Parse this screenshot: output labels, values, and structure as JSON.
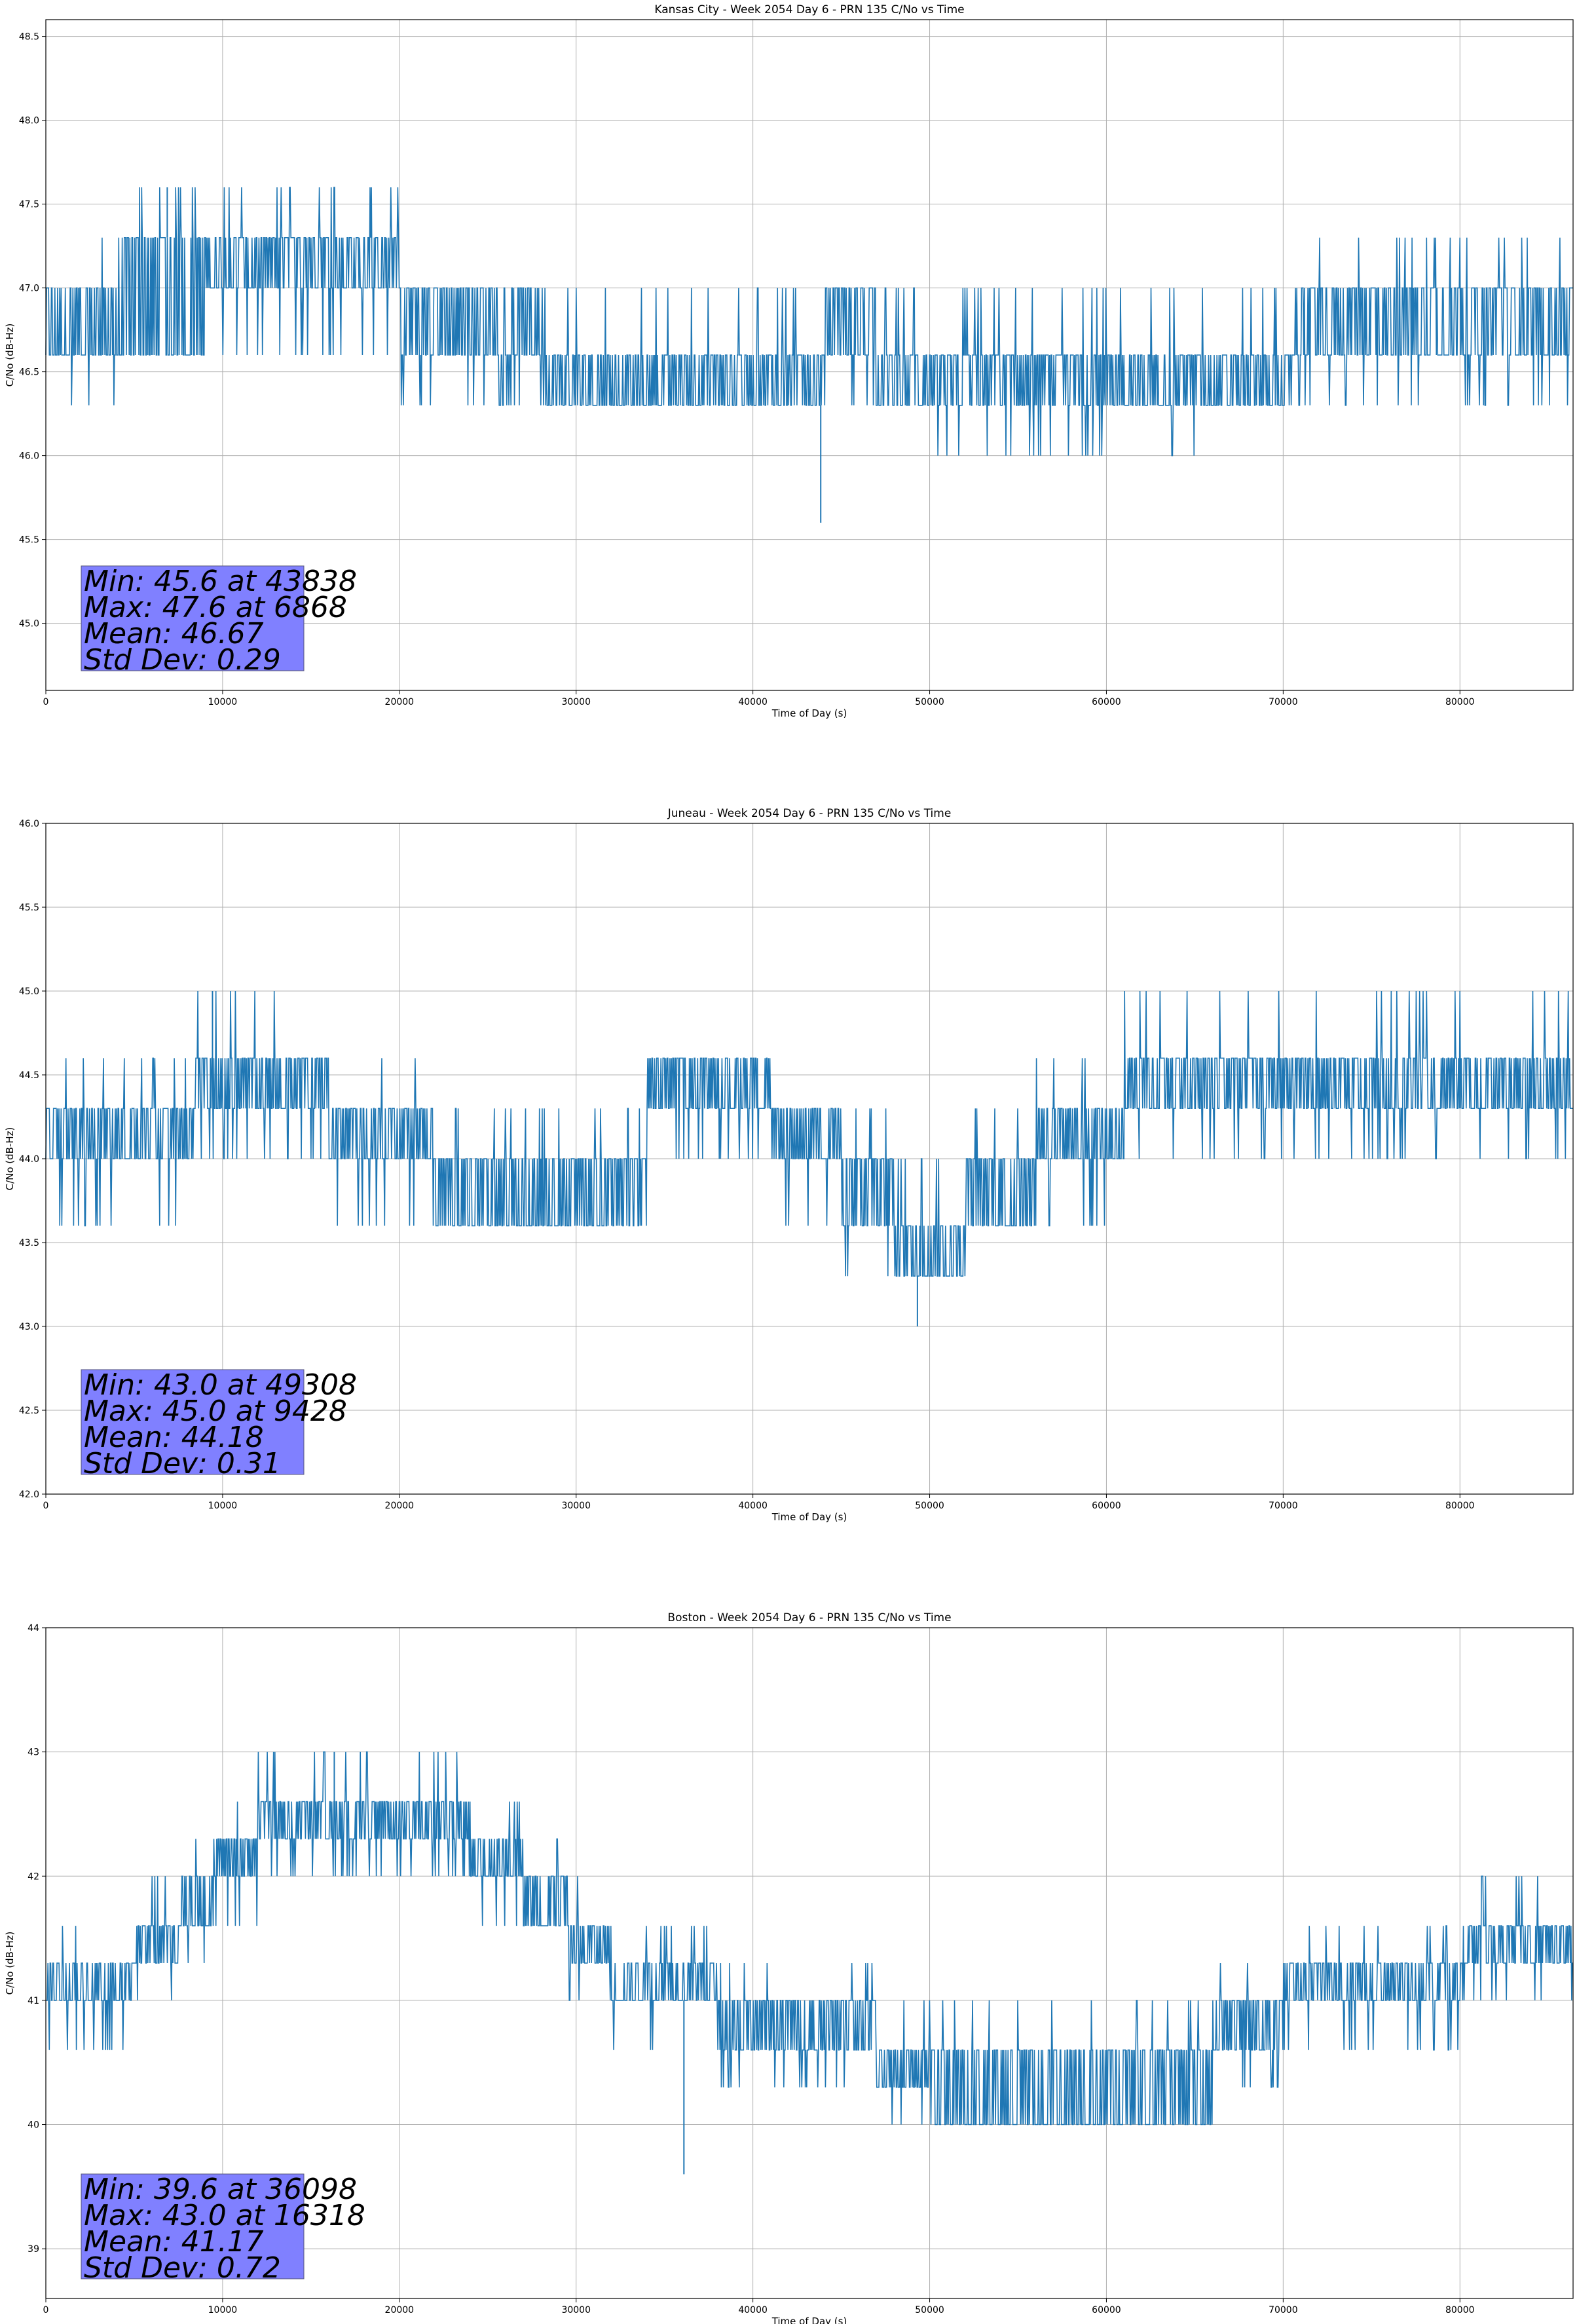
{
  "colors": {
    "line": "#1f77b4",
    "stats_box": "#8080ff",
    "grid": "#b0b0b0"
  },
  "chart_data": [
    {
      "type": "line",
      "title": "Kansas City - Week 2054 Day 6 - PRN 135 C/No vs Time",
      "xlabel": "Time of Day (s)",
      "ylabel": "C/No (dB-Hz)",
      "xlim": [
        0,
        86400
      ],
      "ylim": [
        44.6,
        48.6
      ],
      "xticks": [
        0,
        10000,
        20000,
        30000,
        40000,
        50000,
        60000,
        70000,
        80000
      ],
      "yticks": [
        45.0,
        45.5,
        46.0,
        46.5,
        47.0,
        47.5,
        48.0,
        48.5
      ],
      "ytick_decimals": 1,
      "grid": true,
      "series_description": "Quantized C/No samples (0.3 dB steps) oscillating between adjacent levels",
      "level_segments": [
        {
          "t0": 0,
          "t1": 4000,
          "lo": 46.6,
          "hi": 47.0,
          "dip": 46.3,
          "spike": 47.3
        },
        {
          "t0": 4000,
          "t1": 9000,
          "lo": 46.6,
          "hi": 47.3,
          "dip": 46.6,
          "spike": 47.6
        },
        {
          "t0": 9000,
          "t1": 20000,
          "lo": 47.0,
          "hi": 47.3,
          "dip": 46.6,
          "spike": 47.6
        },
        {
          "t0": 20000,
          "t1": 28000,
          "lo": 46.6,
          "hi": 47.0,
          "dip": 46.3,
          "spike": 47.0
        },
        {
          "t0": 28000,
          "t1": 44000,
          "lo": 46.3,
          "hi": 46.6,
          "dip": 46.3,
          "spike": 47.0
        },
        {
          "t0": 44000,
          "t1": 47000,
          "lo": 46.6,
          "hi": 47.0,
          "dip": 46.3,
          "spike": 47.0
        },
        {
          "t0": 47000,
          "t1": 66000,
          "lo": 46.3,
          "hi": 46.6,
          "dip": 46.0,
          "spike": 47.0
        },
        {
          "t0": 66000,
          "t1": 71000,
          "lo": 46.3,
          "hi": 46.6,
          "dip": 46.3,
          "spike": 47.0
        },
        {
          "t0": 71000,
          "t1": 86400,
          "lo": 46.6,
          "hi": 47.0,
          "dip": 46.3,
          "spike": 47.3
        }
      ],
      "min": {
        "value": 45.6,
        "time": 43838
      },
      "max": {
        "value": 47.6,
        "time": 6868
      },
      "mean": 46.67,
      "std_dev": 0.29,
      "stats_lines": [
        "Min: 45.6 at 43838",
        "Max: 47.6 at 6868",
        "Mean: 46.67",
        "Std Dev: 0.29"
      ]
    },
    {
      "type": "line",
      "title": "Juneau - Week 2054 Day 6 - PRN 135 C/No vs Time",
      "xlabel": "Time of Day (s)",
      "ylabel": "C/No (dB-Hz)",
      "xlim": [
        0,
        86400
      ],
      "ylim": [
        42.0,
        46.0
      ],
      "xticks": [
        0,
        10000,
        20000,
        30000,
        40000,
        50000,
        60000,
        70000,
        80000
      ],
      "yticks": [
        42.0,
        42.5,
        43.0,
        43.5,
        44.0,
        44.5,
        45.0,
        45.5,
        46.0
      ],
      "ytick_decimals": 1,
      "grid": true,
      "series_description": "Quantized C/No samples (0.3 dB steps) oscillating between adjacent levels",
      "level_segments": [
        {
          "t0": 0,
          "t1": 8500,
          "lo": 44.0,
          "hi": 44.3,
          "dip": 43.6,
          "spike": 44.6
        },
        {
          "t0": 8500,
          "t1": 16000,
          "lo": 44.3,
          "hi": 44.6,
          "dip": 44.0,
          "spike": 45.0
        },
        {
          "t0": 16000,
          "t1": 22000,
          "lo": 44.0,
          "hi": 44.3,
          "dip": 43.6,
          "spike": 44.6
        },
        {
          "t0": 22000,
          "t1": 34000,
          "lo": 43.6,
          "hi": 44.0,
          "dip": 43.6,
          "spike": 44.3
        },
        {
          "t0": 34000,
          "t1": 41000,
          "lo": 44.3,
          "hi": 44.6,
          "dip": 44.0,
          "spike": 44.6
        },
        {
          "t0": 41000,
          "t1": 45000,
          "lo": 44.0,
          "hi": 44.3,
          "dip": 43.6,
          "spike": 44.3
        },
        {
          "t0": 45000,
          "t1": 48000,
          "lo": 43.6,
          "hi": 44.0,
          "dip": 43.3,
          "spike": 44.3
        },
        {
          "t0": 48000,
          "t1": 52000,
          "lo": 43.3,
          "hi": 43.6,
          "dip": 43.3,
          "spike": 44.0
        },
        {
          "t0": 52000,
          "t1": 56000,
          "lo": 43.6,
          "hi": 44.0,
          "dip": 43.6,
          "spike": 44.3
        },
        {
          "t0": 56000,
          "t1": 61000,
          "lo": 44.0,
          "hi": 44.3,
          "dip": 43.6,
          "spike": 44.6
        },
        {
          "t0": 61000,
          "t1": 70000,
          "lo": 44.3,
          "hi": 44.6,
          "dip": 44.0,
          "spike": 45.0
        },
        {
          "t0": 70000,
          "t1": 86400,
          "lo": 44.3,
          "hi": 44.6,
          "dip": 44.0,
          "spike": 45.0
        }
      ],
      "min": {
        "value": 43.0,
        "time": 49308
      },
      "max": {
        "value": 45.0,
        "time": 9428
      },
      "mean": 44.18,
      "std_dev": 0.31,
      "stats_lines": [
        "Min: 43.0 at 49308",
        "Max: 45.0 at 9428",
        "Mean: 44.18",
        "Std Dev: 0.31"
      ]
    },
    {
      "type": "line",
      "title": "Boston - Week 2054 Day 6 - PRN 135 C/No vs Time",
      "xlabel": "Time of Day (s)",
      "ylabel": "C/No (dB-Hz)",
      "xlim": [
        0,
        86400
      ],
      "ylim": [
        38.6,
        44.0
      ],
      "xticks": [
        0,
        10000,
        20000,
        30000,
        40000,
        50000,
        60000,
        70000,
        80000
      ],
      "yticks": [
        39,
        40,
        41,
        42,
        43,
        44
      ],
      "ytick_decimals": 0,
      "grid": true,
      "series_description": "Quantized C/No samples (0.3 dB steps) following a slow diurnal curve",
      "level_segments": [
        {
          "t0": 0,
          "t1": 5000,
          "lo": 41.0,
          "hi": 41.3,
          "dip": 40.6,
          "spike": 41.6
        },
        {
          "t0": 5000,
          "t1": 7500,
          "lo": 41.3,
          "hi": 41.6,
          "dip": 41.0,
          "spike": 42.0
        },
        {
          "t0": 7500,
          "t1": 9500,
          "lo": 41.6,
          "hi": 42.0,
          "dip": 41.3,
          "spike": 42.3
        },
        {
          "t0": 9500,
          "t1": 12000,
          "lo": 42.0,
          "hi": 42.3,
          "dip": 41.6,
          "spike": 42.6
        },
        {
          "t0": 12000,
          "t1": 24000,
          "lo": 42.3,
          "hi": 42.6,
          "dip": 42.0,
          "spike": 43.0
        },
        {
          "t0": 24000,
          "t1": 27000,
          "lo": 42.0,
          "hi": 42.3,
          "dip": 41.6,
          "spike": 42.6
        },
        {
          "t0": 27000,
          "t1": 29500,
          "lo": 41.6,
          "hi": 42.0,
          "dip": 41.3,
          "spike": 42.3
        },
        {
          "t0": 29500,
          "t1": 32000,
          "lo": 41.3,
          "hi": 41.6,
          "dip": 41.0,
          "spike": 42.0
        },
        {
          "t0": 32000,
          "t1": 38000,
          "lo": 41.0,
          "hi": 41.3,
          "dip": 40.6,
          "spike": 41.6
        },
        {
          "t0": 38000,
          "t1": 47000,
          "lo": 40.6,
          "hi": 41.0,
          "dip": 40.3,
          "spike": 41.3
        },
        {
          "t0": 47000,
          "t1": 50000,
          "lo": 40.3,
          "hi": 40.6,
          "dip": 40.0,
          "spike": 41.0
        },
        {
          "t0": 50000,
          "t1": 66000,
          "lo": 40.0,
          "hi": 40.6,
          "dip": 40.0,
          "spike": 41.0
        },
        {
          "t0": 66000,
          "t1": 70000,
          "lo": 40.6,
          "hi": 41.0,
          "dip": 40.3,
          "spike": 41.3
        },
        {
          "t0": 70000,
          "t1": 80000,
          "lo": 41.0,
          "hi": 41.3,
          "dip": 40.6,
          "spike": 41.6
        },
        {
          "t0": 80000,
          "t1": 83000,
          "lo": 41.3,
          "hi": 41.6,
          "dip": 41.0,
          "spike": 42.0
        },
        {
          "t0": 83000,
          "t1": 86400,
          "lo": 41.3,
          "hi": 41.6,
          "dip": 41.0,
          "spike": 42.0
        }
      ],
      "min": {
        "value": 39.6,
        "time": 36098
      },
      "max": {
        "value": 43.0,
        "time": 16318
      },
      "mean": 41.17,
      "std_dev": 0.72,
      "stats_lines": [
        "Min: 39.6 at 36098",
        "Max: 43.0 at 16318",
        "Mean: 41.17",
        "Std Dev: 0.72"
      ]
    }
  ]
}
